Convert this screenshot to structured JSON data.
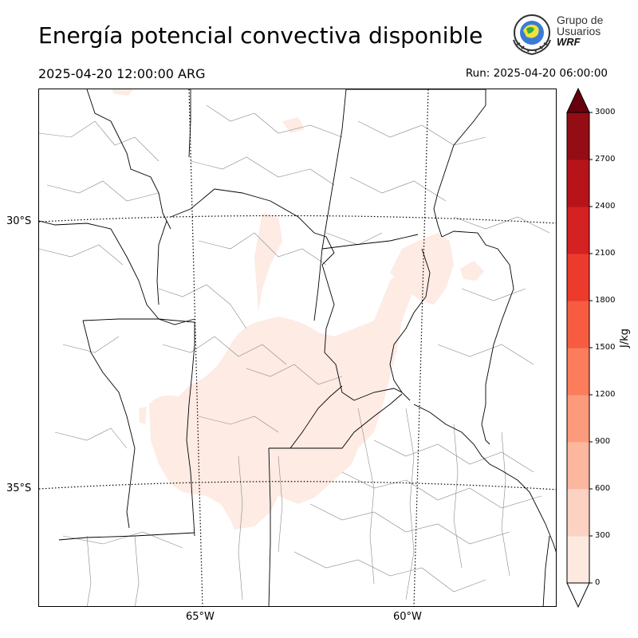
{
  "header": {
    "title": "Energía potencial convectiva disponible",
    "valid_time": "2025-04-20 12:00:00 ARG",
    "run_time": "Run: 2025-04-20 06:00:00"
  },
  "logo": {
    "line1": "Grupo de",
    "line2": "Usuarios",
    "line3": "WRF",
    "icon": "wrf-group-seal-icon"
  },
  "map": {
    "lat_labels": [
      "30°S",
      "35°S"
    ],
    "lon_labels": [
      "65°W",
      "60°W"
    ],
    "field_color": "#fdebe4",
    "border_color": "#000000",
    "sub_border_color": "#888888"
  },
  "colorbar": {
    "unit": "J/kg",
    "ticks": [
      "0",
      "300",
      "600",
      "900",
      "1200",
      "1500",
      "1800",
      "2100",
      "2400",
      "2700",
      "3000"
    ],
    "colors": [
      "#fee9e1",
      "#fcd3c3",
      "#fcb89f",
      "#fc9b7c",
      "#fb7d5c",
      "#f75c41",
      "#ec3a2c",
      "#d42121",
      "#b61419",
      "#940c14",
      "#6d0b11"
    ],
    "under_color": "#ffffff",
    "over_color": "#67000d"
  }
}
